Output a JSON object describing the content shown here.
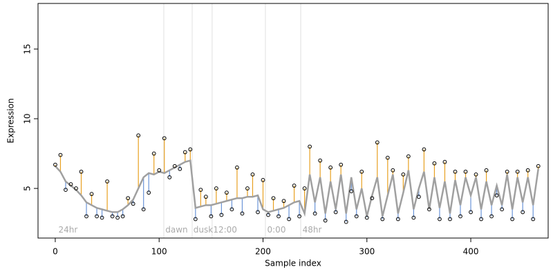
{
  "chart_data": {
    "type": "residual-scatter",
    "x_label": "Sample index",
    "y_label": "Expression",
    "xlim": [
      -16.6,
      474.5
    ],
    "ylim": [
      1.44,
      18.27
    ],
    "xticks": [
      0,
      100,
      200,
      300,
      400
    ],
    "yticks": [
      5,
      10,
      15
    ],
    "point_color": "#000000",
    "line_color": "#a0a0a0",
    "above_color": "#e8a020",
    "below_color": "#6a94d8",
    "vline_color": "#e0e0e0",
    "x": [
      0,
      5,
      10,
      15,
      20,
      25,
      30,
      35,
      40,
      45,
      50,
      55,
      60,
      65,
      70,
      75,
      80,
      85,
      90,
      95,
      100,
      105,
      110,
      115,
      120,
      125,
      130,
      135,
      140,
      145,
      150,
      155,
      160,
      165,
      170,
      175,
      180,
      185,
      190,
      195,
      200,
      205,
      210,
      215,
      220,
      225,
      230,
      235,
      240,
      245,
      250,
      255,
      260,
      265,
      270,
      275,
      280,
      285,
      290,
      295,
      300,
      305,
      310,
      315,
      320,
      325,
      330,
      335,
      340,
      345,
      350,
      355,
      360,
      365,
      370,
      375,
      380,
      385,
      390,
      395,
      400,
      405,
      410,
      415,
      420,
      425,
      430,
      435,
      440,
      445,
      450,
      455,
      460,
      465
    ],
    "values": [
      6.7,
      7.4,
      4.9,
      5.3,
      5.0,
      6.2,
      3.0,
      4.6,
      3.0,
      2.9,
      5.5,
      3.0,
      2.9,
      3.0,
      4.3,
      3.9,
      8.8,
      3.5,
      4.7,
      7.5,
      6.3,
      8.6,
      5.8,
      6.6,
      6.4,
      7.6,
      7.8,
      2.8,
      4.9,
      4.4,
      3.0,
      5.0,
      3.1,
      4.7,
      3.5,
      6.5,
      3.2,
      5.0,
      6.0,
      3.3,
      5.6,
      3.1,
      4.3,
      3.0,
      4.1,
      2.8,
      5.2,
      3.0,
      5.0,
      8.0,
      3.2,
      7.0,
      2.7,
      6.5,
      3.3,
      6.7,
      2.6,
      4.8,
      3.0,
      6.2,
      2.9,
      4.3,
      8.3,
      2.8,
      7.2,
      6.3,
      2.8,
      6.0,
      7.3,
      2.9,
      4.4,
      7.8,
      3.5,
      6.8,
      2.8,
      6.9,
      2.8,
      6.2,
      3.0,
      6.2,
      3.3,
      6.0,
      2.8,
      6.3,
      3.0,
      4.5,
      3.5,
      6.2,
      2.8,
      6.2,
      3.3,
      6.3,
      2.8,
      6.6
    ],
    "fitted": [
      6.6,
      6.2,
      5.5,
      5.2,
      4.9,
      4.5,
      4.0,
      3.8,
      3.6,
      3.5,
      3.4,
      3.3,
      3.3,
      3.5,
      3.8,
      4.2,
      5.0,
      5.8,
      6.1,
      6.0,
      6.2,
      6.1,
      6.3,
      6.5,
      6.7,
      6.9,
      7.0,
      3.6,
      3.7,
      3.8,
      3.8,
      3.9,
      4.0,
      4.1,
      4.2,
      4.3,
      4.3,
      4.4,
      4.4,
      4.5,
      3.5,
      3.3,
      3.4,
      3.5,
      3.6,
      3.8,
      4.0,
      4.1,
      3.2,
      6.0,
      4.0,
      5.8,
      3.2,
      5.5,
      3.5,
      6.0,
      3.2,
      5.8,
      3.5,
      5.0,
      3.0,
      4.5,
      5.8,
      3.0,
      4.5,
      6.0,
      3.2,
      4.7,
      6.3,
      3.5,
      5.0,
      6.2,
      3.5,
      5.8,
      3.6,
      5.5,
      3.2,
      5.6,
      3.8,
      5.8,
      4.5,
      5.8,
      3.5,
      5.5,
      3.8,
      5.2,
      3.8,
      6.0,
      3.5,
      5.8,
      4.0,
      5.8,
      3.8,
      6.4
    ],
    "vlines": [
      104.5,
      131.8,
      151,
      202.3,
      236.3
    ],
    "annotations": [
      {
        "x": 3,
        "y": 2.0,
        "text": "24hr"
      },
      {
        "x": 106,
        "y": 2.0,
        "text": "dawn"
      },
      {
        "x": 133,
        "y": 2.0,
        "text": "dusk"
      },
      {
        "x": 152,
        "y": 2.0,
        "text": "12:00"
      },
      {
        "x": 204,
        "y": 2.0,
        "text": "0:00"
      },
      {
        "x": 238,
        "y": 2.0,
        "text": "48hr"
      }
    ]
  }
}
